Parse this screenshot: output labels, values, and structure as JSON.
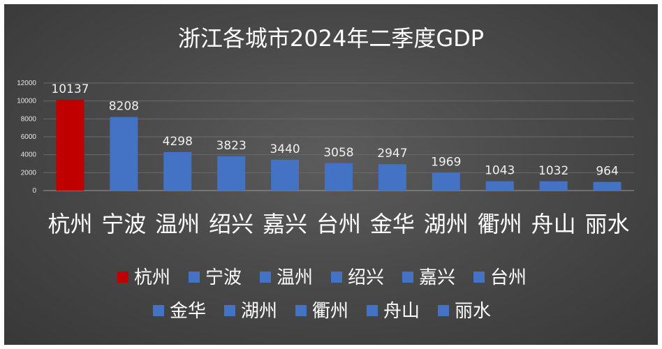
{
  "chart_data": {
    "type": "bar",
    "title": "浙江各城市2024年二季度GDP",
    "xlabel": "",
    "ylabel": "",
    "categories": [
      "杭州",
      "宁波",
      "温州",
      "绍兴",
      "嘉兴",
      "台州",
      "金华",
      "湖州",
      "衢州",
      "舟山",
      "丽水"
    ],
    "series": [
      {
        "values": [
          10137,
          8208,
          4298,
          3823,
          3440,
          3058,
          2947,
          1969,
          1043,
          1032,
          964
        ]
      }
    ],
    "data_labels": [
      "10137",
      "8208",
      "4298",
      "3823",
      "3440",
      "3058",
      "2947",
      "1969",
      "1043",
      "1032",
      "964"
    ],
    "ylim": [
      0,
      12000
    ],
    "yticks": [
      "0",
      "2000",
      "4000",
      "6000",
      "8000",
      "10000",
      "12000"
    ],
    "legend": {
      "placement": "bottom",
      "entries": [
        "杭州",
        "宁波",
        "温州",
        "绍兴",
        "嘉兴",
        "台州",
        "金华",
        "湖州",
        "衢州",
        "舟山",
        "丽水"
      ]
    },
    "grid": true,
    "colors": {
      "highlight": "#c00000",
      "bar": "#4472c4",
      "background": "#484848",
      "gridline": "#6a6a6a"
    },
    "highlight_index": 0
  }
}
